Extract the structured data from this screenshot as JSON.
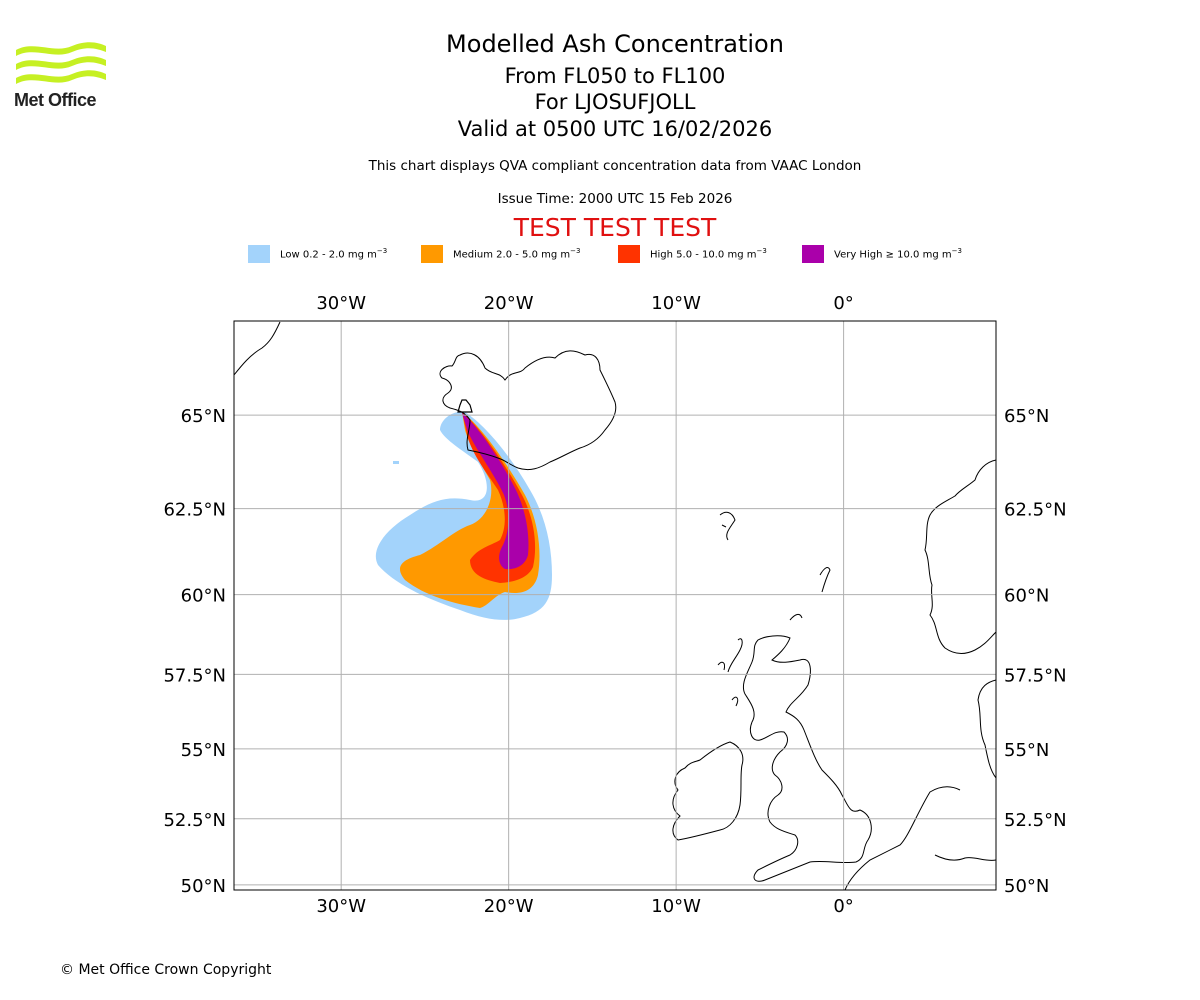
{
  "branding": {
    "logo_text": "Met Office"
  },
  "header": {
    "title": "Modelled Ash Concentration",
    "levels": "From FL050 to FL100",
    "volcano": "For LJOSUFJOLL",
    "valid": "Valid at 0500 UTC 16/02/2026",
    "compliance": "This chart displays QVA compliant concentration data from VAAC London",
    "issue_time": "Issue Time: 2000 UTC 15 Feb 2026",
    "test_banner": "TEST TEST TEST"
  },
  "legend": [
    {
      "label": "Low 0.2 - 2.0 mg m",
      "color": "#a3d3fb"
    },
    {
      "label": "Medium 2.0 - 5.0 mg m",
      "color": "#ff9900"
    },
    {
      "label": "High 5.0 - 10.0 mg m",
      "color": "#ff3300"
    },
    {
      "label": "Very High ≥ 10.0 mg m",
      "color": "#aa00aa"
    }
  ],
  "legend_unit_exponent": "−3",
  "axes": {
    "lon_ticks": [
      "30°W",
      "20°W",
      "10°W",
      "0°"
    ],
    "lat_ticks": [
      "65°N",
      "62.5°N",
      "60°N",
      "57.5°N",
      "55°N",
      "52.5°N",
      "50°N"
    ]
  },
  "chart_data": {
    "type": "map",
    "title": "Modelled Ash Concentration",
    "lon_range": [
      -36.4,
      9.1
    ],
    "lat_range": [
      49.8,
      67.3
    ],
    "lon_ticks": [
      -30,
      -20,
      -10,
      0
    ],
    "lat_ticks": [
      65,
      62.5,
      60,
      57.5,
      55,
      52.5,
      50
    ],
    "grid": true,
    "source_lat_lon": [
      65.0,
      -22.6
    ]
  },
  "footer": {
    "copyright": "© Met Office Crown Copyright"
  }
}
